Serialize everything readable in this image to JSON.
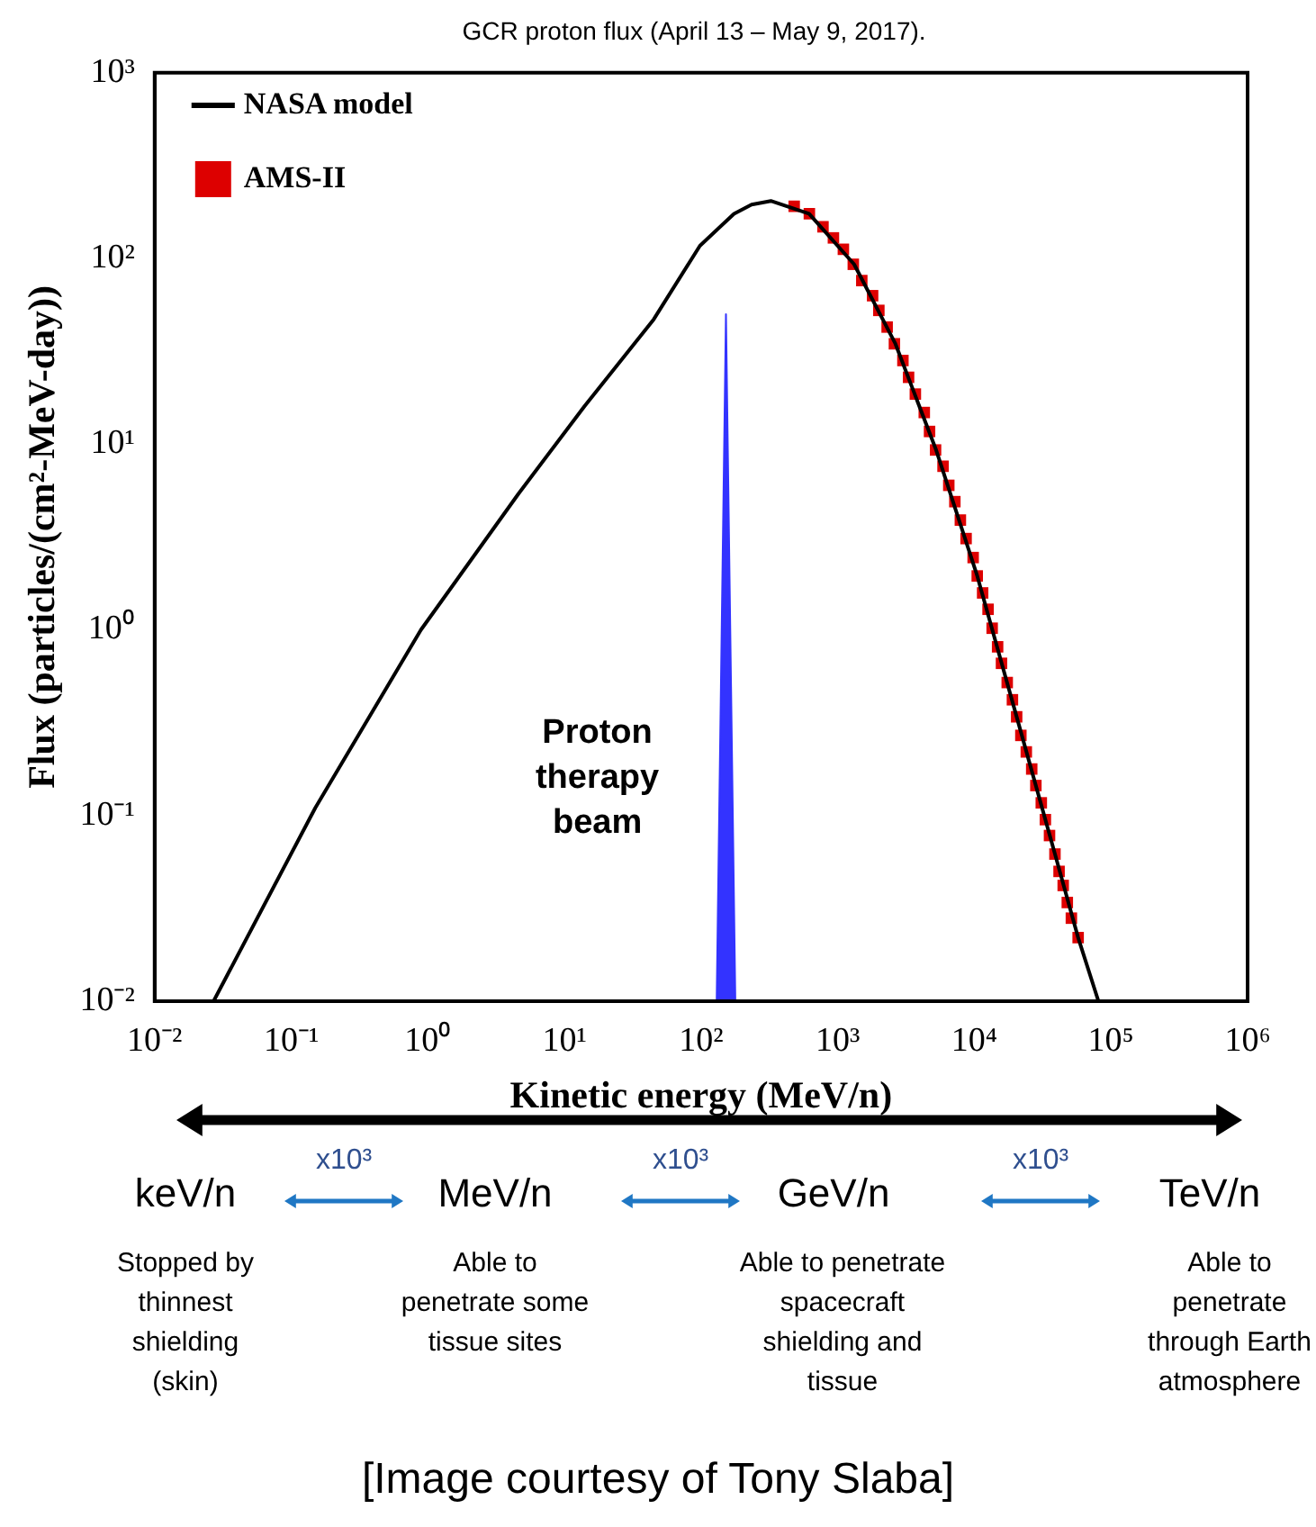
{
  "chart_data": {
    "type": "line",
    "title": "GCR proton flux (April 13 – May 9, 2017).",
    "xlabel": "Kinetic energy (MeV/n)",
    "ylabel": "Flux (particles/(cm²-MeV-day))",
    "log": "xy",
    "legend": "top left",
    "xlim": [
      0.01,
      1000000
    ],
    "ylim": [
      0.01,
      1000
    ],
    "xticks": [
      {
        "value": 0.01,
        "label": "10⁻²"
      },
      {
        "value": 0.1,
        "label": "10⁻¹"
      },
      {
        "value": 1,
        "label": "10⁰"
      },
      {
        "value": 10,
        "label": "10¹"
      },
      {
        "value": 100,
        "label": "10²"
      },
      {
        "value": 1000,
        "label": "10³"
      },
      {
        "value": 10000,
        "label": "10⁴"
      },
      {
        "value": 100000,
        "label": "10⁵"
      },
      {
        "value": 1000000,
        "label": "10⁶"
      }
    ],
    "yticks": [
      {
        "value": 0.01,
        "label": "10⁻²"
      },
      {
        "value": 0.1,
        "label": "10⁻¹"
      },
      {
        "value": 1,
        "label": "10⁰"
      },
      {
        "value": 10,
        "label": "10¹"
      },
      {
        "value": 100,
        "label": "10²"
      },
      {
        "value": 1000,
        "label": "10³"
      }
    ],
    "series": [
      {
        "name": "NASA model",
        "type": "line",
        "color": "#000000",
        "marker": "none",
        "x": [
          0.027,
          0.15,
          0.89,
          4.6,
          14,
          45,
          98,
          174,
          234,
          324,
          617,
          1318,
          2630,
          5250,
          10500,
          20400,
          38900,
          57500,
          81000
        ],
        "values": [
          0.01,
          0.11,
          1.0,
          5.4,
          16,
          47,
          117,
          174,
          195,
          204,
          174,
          93,
          35,
          9.3,
          1.95,
          0.34,
          0.062,
          0.022,
          0.01
        ]
      },
      {
        "name": "AMS-II",
        "type": "scatter",
        "color": "#dd0000",
        "marker": "square",
        "x": [
          480,
          620,
          780,
          930,
          1100,
          1300,
          1500,
          1800,
          2000,
          2300,
          2600,
          3000,
          3300,
          3700,
          4300,
          4700,
          5200,
          5900,
          6500,
          7200,
          7900,
          8700,
          9800,
          10500,
          11500,
          12600,
          13500,
          14800,
          15800,
          17400,
          19000,
          20400,
          21900,
          24000,
          26300,
          28200,
          30900,
          33100,
          35500,
          38900,
          41700,
          44700,
          47900,
          51300,
          57500
        ],
        "values": [
          191,
          174,
          148,
          129,
          112,
          93,
          76,
          63,
          52.5,
          42.7,
          34.7,
          28.2,
          22.9,
          18.6,
          14.8,
          11.7,
          9.3,
          7.6,
          6.0,
          4.9,
          3.9,
          3.1,
          2.45,
          1.95,
          1.58,
          1.29,
          1.02,
          0.81,
          0.66,
          0.52,
          0.42,
          0.34,
          0.27,
          0.22,
          0.178,
          0.145,
          0.117,
          0.095,
          0.078,
          0.062,
          0.05,
          0.042,
          0.034,
          0.028,
          0.022
        ]
      },
      {
        "type": "area",
        "color": "#3333ff",
        "x": [
          130,
          152,
          178
        ],
        "values": [
          0.01,
          50,
          0.01
        ]
      }
    ],
    "annotations": [
      "Proton therapy beam",
      "keV/n",
      "MeV/n",
      "GeV/n",
      "TeV/n",
      "x10³",
      "x10³",
      "x10³",
      "Stopped by thinnest shielding (skin)",
      "Able to penetrate some tissue sites",
      "Able to penetrate spacecraft shielding and tissue",
      "Able to penetrate through Earth atmosphere",
      "[Image courtesy of Tony Slaba]"
    ]
  }
}
